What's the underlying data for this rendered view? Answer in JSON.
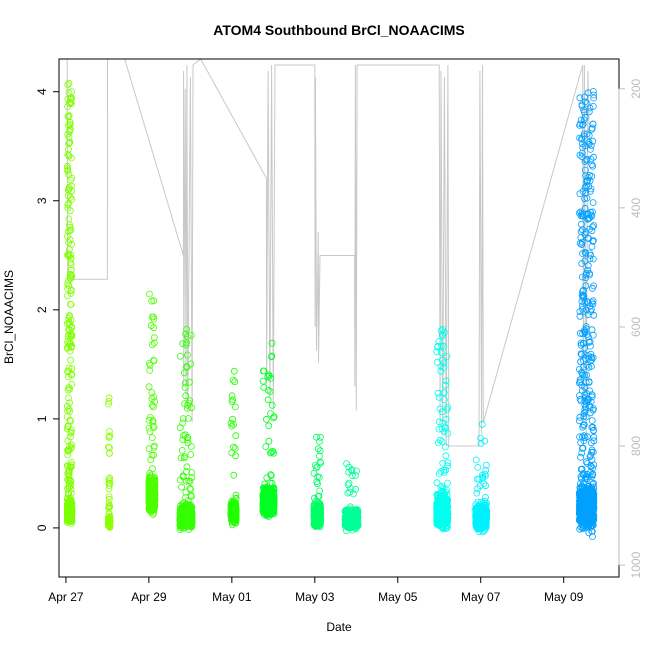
{
  "chart_data": {
    "type": "scatter",
    "title": "ATOM4 Southbound BrCl_NOAACIMS",
    "xlabel": "Date",
    "ylabel": "BrCl_NOAACIMS",
    "x_axis_type": "date",
    "xlim": [
      "2018-04-26T20:00",
      "2018-05-10T08:00"
    ],
    "ylim": [
      -0.45,
      4.3
    ],
    "x_ticks": [
      {
        "date": "2018-04-27",
        "label": "Apr 27"
      },
      {
        "date": "2018-04-29",
        "label": "Apr 29"
      },
      {
        "date": "2018-05-01",
        "label": "May 01"
      },
      {
        "date": "2018-05-03",
        "label": "May 03"
      },
      {
        "date": "2018-05-05",
        "label": "May 05"
      },
      {
        "date": "2018-05-07",
        "label": "May 07"
      },
      {
        "date": "2018-05-09",
        "label": "May 09"
      }
    ],
    "y_ticks": [
      0,
      1,
      2,
      3,
      4
    ],
    "right_axis": {
      "description": "secondary axis (grey), inverted",
      "ylim": [
        1020,
        150
      ],
      "ticks": [
        200,
        400,
        600,
        800,
        1000
      ],
      "color": "#bdbdbd"
    },
    "marker": "open-circle",
    "grid": false,
    "legend": "none",
    "series": [
      {
        "start": "2018-04-27T00:45",
        "end": "2018-04-27T03:30",
        "color": "#7fff00",
        "n": 520,
        "base": 0.15,
        "spread": 0.17,
        "peak": 4.1,
        "peak_frac": 0.4
      },
      {
        "start": "2018-04-28T00:30",
        "end": "2018-04-28T01:30",
        "color": "#8cff00",
        "n": 100,
        "base": 0.05,
        "spread": 0.1,
        "peak": 1.2,
        "peak_frac": 0.35
      },
      {
        "start": "2018-04-29T00:00",
        "end": "2018-04-29T03:30",
        "color": "#4cff00",
        "n": 420,
        "base": 0.3,
        "spread": 0.28,
        "peak": 2.15,
        "peak_frac": 0.1
      },
      {
        "start": "2018-04-29T18:00",
        "end": "2018-04-30T01:00",
        "color": "#33ff00",
        "n": 700,
        "base": 0.1,
        "spread": 0.18,
        "peak": 1.85,
        "peak_frac": 0.08
      },
      {
        "start": "2018-04-30T23:30",
        "end": "2018-05-01T02:30",
        "color": "#22ff00",
        "n": 400,
        "base": 0.15,
        "spread": 0.18,
        "peak": 1.45,
        "peak_frac": 0.06
      },
      {
        "start": "2018-05-01T18:00",
        "end": "2018-05-02T00:30",
        "color": "#00ff22",
        "n": 600,
        "base": 0.25,
        "spread": 0.22,
        "peak": 1.7,
        "peak_frac": 0.05
      },
      {
        "start": "2018-05-02T23:30",
        "end": "2018-05-03T03:30",
        "color": "#00ff66",
        "n": 400,
        "base": 0.12,
        "spread": 0.18,
        "peak": 0.9,
        "peak_frac": 0.06
      },
      {
        "start": "2018-05-03T17:30",
        "end": "2018-05-04T01:00",
        "color": "#00ff99",
        "n": 380,
        "base": 0.08,
        "spread": 0.16,
        "peak": 0.6,
        "peak_frac": 0.05
      },
      {
        "start": "2018-05-05T22:30",
        "end": "2018-05-06T05:00",
        "color": "#00ffee",
        "n": 680,
        "base": 0.15,
        "spread": 0.25,
        "peak": 1.85,
        "peak_frac": 0.12
      },
      {
        "start": "2018-05-06T21:00",
        "end": "2018-05-07T03:30",
        "color": "#00f0ff",
        "n": 480,
        "base": 0.1,
        "spread": 0.2,
        "peak": 0.98,
        "peak_frac": 0.07
      },
      {
        "start": "2018-05-09T09:00",
        "end": "2018-05-09T17:30",
        "color": "#00a0ff",
        "n": 950,
        "base": 0.2,
        "spread": 0.35,
        "peak": 4.05,
        "peak_frac": 0.3
      }
    ],
    "secondary_line": {
      "color": "#c8c8c8",
      "points": [
        [
          "2018-04-27T00:45",
          150
        ],
        [
          "2018-04-27T01:00",
          520
        ],
        [
          "2018-04-28T00:00",
          520
        ],
        [
          "2018-04-28T00:05",
          150
        ],
        [
          "2018-04-28T10:00",
          150
        ],
        [
          "2018-04-29T20:00",
          480
        ],
        [
          "2018-04-29T20:05",
          170
        ],
        [
          "2018-04-29T20:10",
          700
        ],
        [
          "2018-04-29T21:00",
          200
        ],
        [
          "2018-04-29T21:30",
          720
        ],
        [
          "2018-04-29T22:00",
          160
        ],
        [
          "2018-04-29T22:30",
          740
        ],
        [
          "2018-04-30T00:00",
          180
        ],
        [
          "2018-04-30T01:00",
          760
        ],
        [
          "2018-04-30T01:30",
          160
        ],
        [
          "2018-04-30T06:00",
          150
        ],
        [
          "2018-05-01T20:00",
          350
        ],
        [
          "2018-05-01T20:05",
          700
        ],
        [
          "2018-05-01T21:00",
          170
        ],
        [
          "2018-05-01T22:00",
          720
        ],
        [
          "2018-05-01T23:00",
          160
        ],
        [
          "2018-05-02T00:00",
          740
        ],
        [
          "2018-05-02T01:00",
          160
        ],
        [
          "2018-05-03T00:00",
          160
        ],
        [
          "2018-05-03T00:10",
          600
        ],
        [
          "2018-05-03T00:20",
          180
        ],
        [
          "2018-05-03T01:00",
          640
        ],
        [
          "2018-05-03T02:00",
          440
        ],
        [
          "2018-05-03T02:10",
          660
        ],
        [
          "2018-05-03T03:00",
          480
        ],
        [
          "2018-05-03T23:00",
          480
        ],
        [
          "2018-05-03T23:10",
          700
        ],
        [
          "2018-05-03T23:30",
          160
        ],
        [
          "2018-05-04T00:00",
          740
        ],
        [
          "2018-05-04T00:30",
          160
        ],
        [
          "2018-05-06T00:00",
          160
        ],
        [
          "2018-05-06T00:30",
          760
        ],
        [
          "2018-05-06T01:00",
          170
        ],
        [
          "2018-05-06T02:00",
          780
        ],
        [
          "2018-05-06T03:00",
          180
        ],
        [
          "2018-05-06T04:00",
          800
        ],
        [
          "2018-05-06T05:00",
          160
        ],
        [
          "2018-05-06T05:30",
          800
        ],
        [
          "2018-05-06T23:00",
          800
        ],
        [
          "2018-05-06T23:30",
          170
        ],
        [
          "2018-05-07T00:30",
          780
        ],
        [
          "2018-05-07T01:00",
          160
        ],
        [
          "2018-05-07T01:30",
          760
        ],
        [
          "2018-05-09T11:00",
          160
        ],
        [
          "2018-05-09T11:30",
          760
        ],
        [
          "2018-05-09T12:00",
          160
        ],
        [
          "2018-05-09T13:00",
          780
        ],
        [
          "2018-05-09T14:00",
          170
        ],
        [
          "2018-05-09T15:00",
          300
        ]
      ]
    }
  }
}
